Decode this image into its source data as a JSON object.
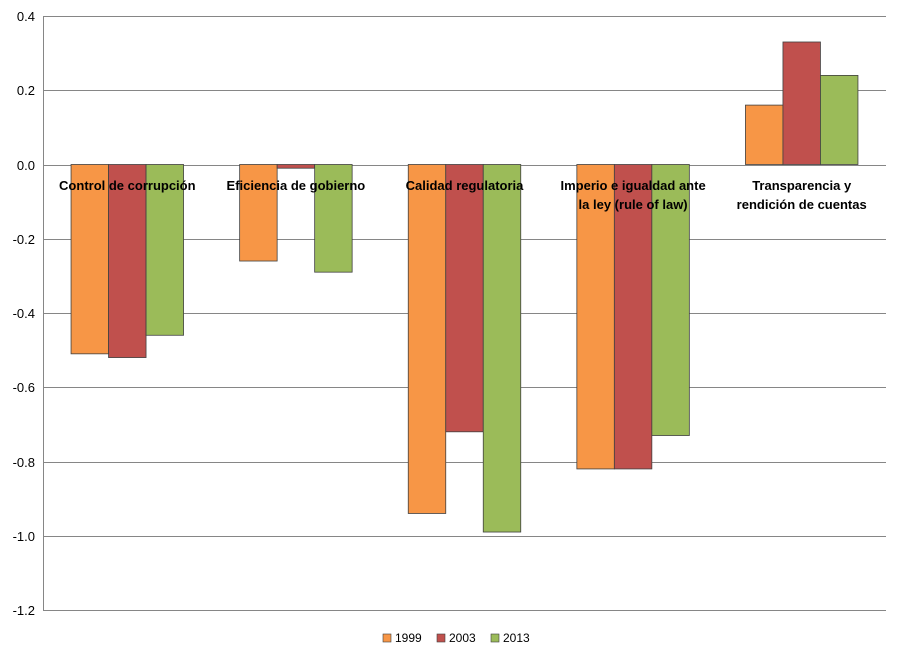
{
  "chart_data": {
    "type": "bar",
    "title": "",
    "xlabel": "",
    "ylabel": "",
    "ylim": [
      -1.2,
      0.4
    ],
    "yticks": [
      0.4,
      0.2,
      0.0,
      -0.2,
      -0.4,
      -0.6,
      -0.8,
      -1.0,
      -1.2
    ],
    "ytick_labels": [
      "0.4",
      "0.2",
      "0.0",
      "-0.2",
      "-0.4",
      "-0.6",
      "-0.8",
      "-1.0",
      "-1.2"
    ],
    "grid": true,
    "legend_position": "bottom",
    "categories": [
      [
        "Control de corrupción"
      ],
      [
        "Eficiencia de gobierno"
      ],
      [
        "Calidad regulatoria"
      ],
      [
        "Imperio e igualdad ante",
        "la ley (rule of law)"
      ],
      [
        "Transparencia y",
        "rendición de cuentas"
      ]
    ],
    "series": [
      {
        "name": "1999",
        "color": "#F79646",
        "values": [
          -0.51,
          -0.26,
          -0.94,
          -0.82,
          0.16
        ]
      },
      {
        "name": "2003",
        "color": "#C0504D",
        "values": [
          -0.52,
          -0.01,
          -0.72,
          -0.82,
          0.33
        ]
      },
      {
        "name": "2013",
        "color": "#9BBB59",
        "values": [
          -0.46,
          -0.29,
          -0.99,
          -0.73,
          0.24
        ]
      }
    ]
  }
}
